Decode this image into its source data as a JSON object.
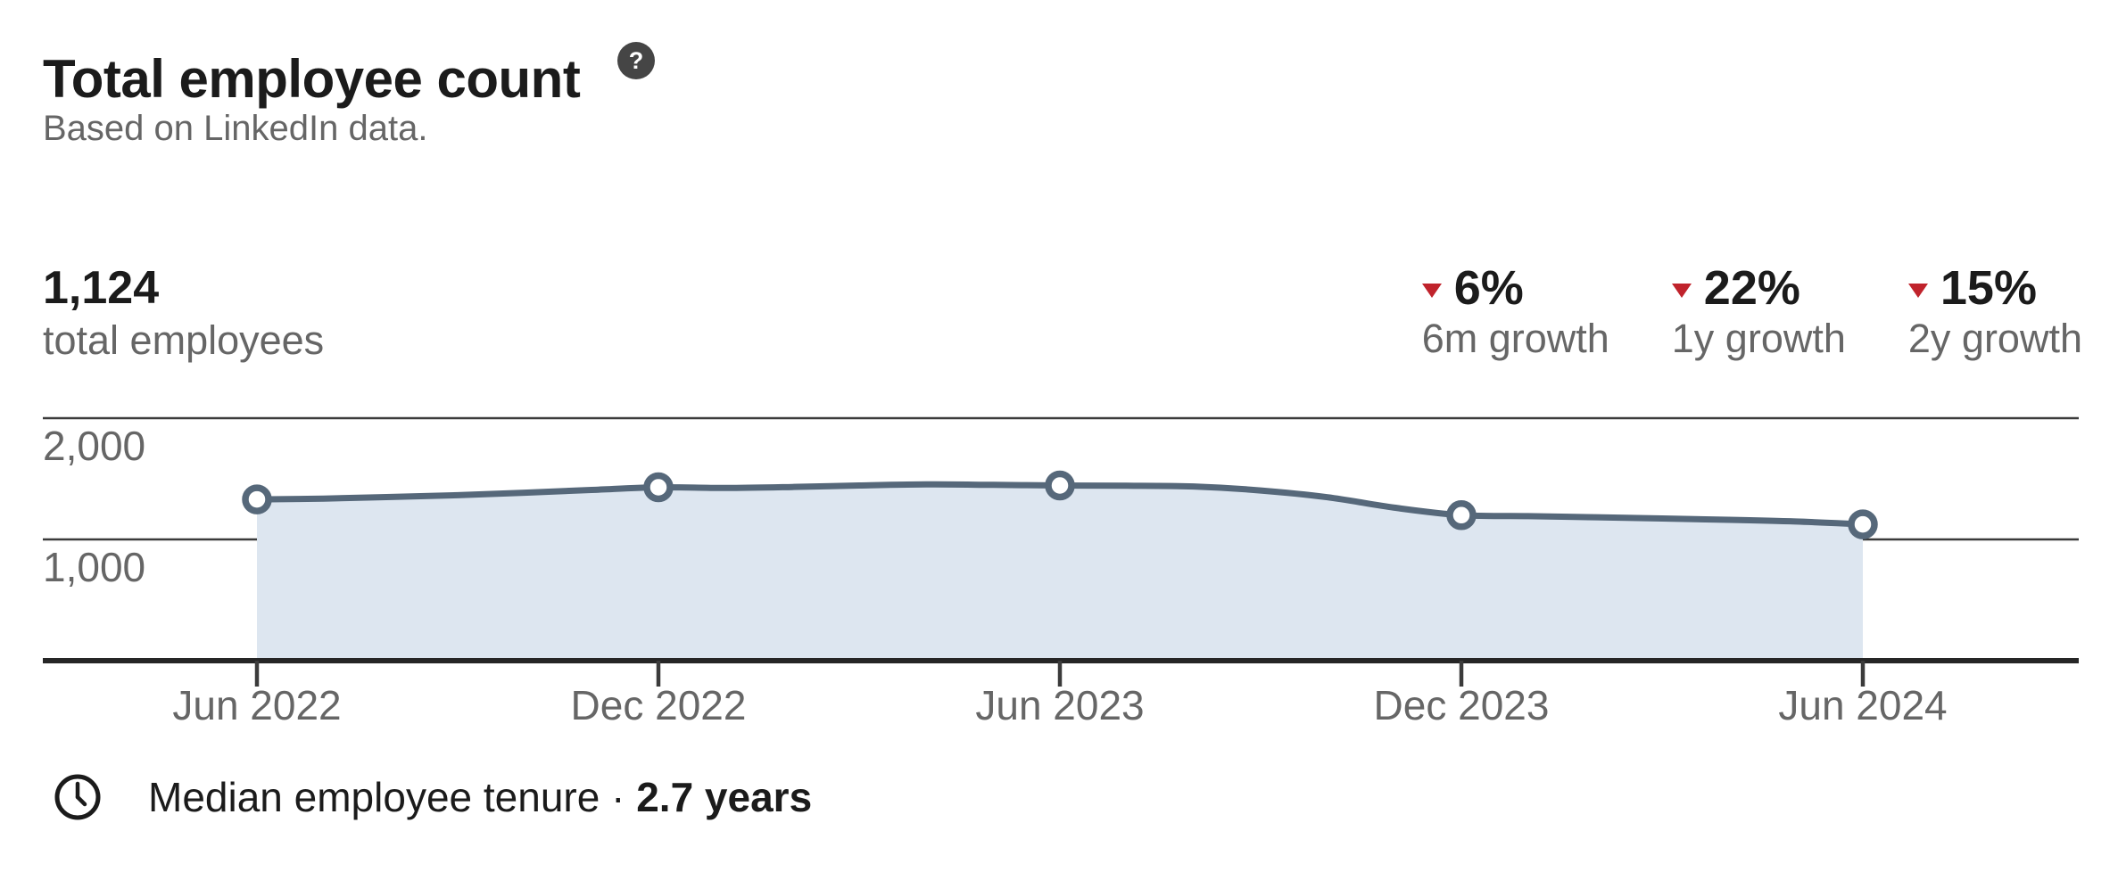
{
  "header": {
    "title": "Total employee count",
    "help_glyph": "?",
    "subtitle": "Based on LinkedIn data."
  },
  "summary": {
    "value": "1,124",
    "label": "total employees"
  },
  "growth_stats": [
    {
      "value": "6%",
      "label": "6m growth",
      "direction": "down"
    },
    {
      "value": "22%",
      "label": "1y growth",
      "direction": "down"
    },
    {
      "value": "15%",
      "label": "2y growth",
      "direction": "down"
    }
  ],
  "chart_data": {
    "type": "area",
    "title": "Total employee count",
    "categories": [
      "Jun 2022",
      "Dec 2022",
      "Jun 2023",
      "Dec 2023",
      "Jun 2024"
    ],
    "values": [
      1330,
      1430,
      1445,
      1200,
      1124
    ],
    "monthly_curve": [
      1330,
      1337,
      1350,
      1365,
      1385,
      1408,
      1430,
      1424,
      1432,
      1445,
      1454,
      1450,
      1445,
      1443,
      1437,
      1404,
      1348,
      1262,
      1200,
      1192,
      1183,
      1173,
      1162,
      1148,
      1124
    ],
    "y_axis": [
      {
        "value": 2000,
        "label": "2,000"
      },
      {
        "value": 1000,
        "label": "1,000"
      }
    ],
    "ylim": [
      0,
      2000
    ],
    "grid": "horizontal",
    "legend": "none"
  },
  "footer": {
    "label": "Median employee tenure ·",
    "value": "2.7 years"
  },
  "colors": {
    "line": "#56687a",
    "area_fill": "#dde6f0",
    "marker_fill": "#ffffff",
    "negative_red": "#c0232c",
    "text_primary": "#1b1b1b",
    "text_secondary": "#666666",
    "gridline": "#3b3b3b",
    "baseline": "#262626",
    "help_icon_bg": "#454545"
  }
}
